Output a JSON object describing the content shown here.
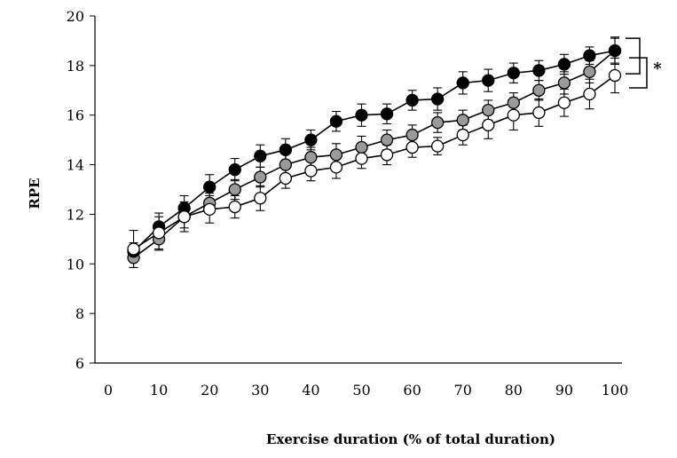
{
  "chart_data": {
    "type": "line",
    "xlabel": "Exercise duration (% of total duration)",
    "ylabel": "RPE",
    "xlim": [
      0,
      100
    ],
    "ylim": [
      6,
      20
    ],
    "xticks": [
      0,
      10,
      20,
      30,
      40,
      50,
      60,
      70,
      80,
      90,
      100
    ],
    "yticks": [
      6,
      8,
      10,
      12,
      14,
      16,
      18,
      20
    ],
    "x": [
      5,
      10,
      15,
      20,
      25,
      30,
      35,
      40,
      45,
      50,
      55,
      60,
      65,
      70,
      75,
      80,
      85,
      90,
      95,
      100
    ],
    "series": [
      {
        "marker": "filled-black",
        "fill": "#000000",
        "values": [
          10.5,
          11.5,
          12.25,
          13.1,
          13.8,
          14.35,
          14.6,
          15.0,
          15.75,
          16.0,
          16.05,
          16.6,
          16.65,
          17.3,
          17.4,
          17.7,
          17.8,
          18.05,
          18.4,
          18.6
        ],
        "error": [
          0.35,
          0.55,
          0.5,
          0.5,
          0.45,
          0.45,
          0.45,
          0.4,
          0.4,
          0.45,
          0.4,
          0.4,
          0.45,
          0.45,
          0.45,
          0.4,
          0.4,
          0.4,
          0.35,
          0.55
        ]
      },
      {
        "marker": "filled-gray",
        "fill": "#9a9a9a",
        "values": [
          10.25,
          11.0,
          11.9,
          12.45,
          13.0,
          13.5,
          14.0,
          14.3,
          14.4,
          14.7,
          15.0,
          15.2,
          15.7,
          15.8,
          16.2,
          16.5,
          17.0,
          17.3,
          17.75,
          18.6
        ],
        "error": [
          0.4,
          0.45,
          0.45,
          0.4,
          0.4,
          0.4,
          0.45,
          0.4,
          0.45,
          0.45,
          0.4,
          0.4,
          0.4,
          0.4,
          0.4,
          0.4,
          0.4,
          0.45,
          0.45,
          0.5
        ]
      },
      {
        "marker": "open-white",
        "fill": "#ffffff",
        "values": [
          10.6,
          11.25,
          11.9,
          12.2,
          12.3,
          12.65,
          13.45,
          13.75,
          13.9,
          14.25,
          14.4,
          14.7,
          14.75,
          15.2,
          15.6,
          16.0,
          16.1,
          16.5,
          16.85,
          17.6
        ],
        "error": [
          0.75,
          0.65,
          0.6,
          0.55,
          0.45,
          0.5,
          0.4,
          0.4,
          0.45,
          0.4,
          0.4,
          0.4,
          0.35,
          0.4,
          0.55,
          0.6,
          0.55,
          0.55,
          0.6,
          0.7
        ]
      }
    ],
    "annotations": [
      {
        "text": "*",
        "between_series": [
          0,
          2
        ]
      }
    ]
  }
}
